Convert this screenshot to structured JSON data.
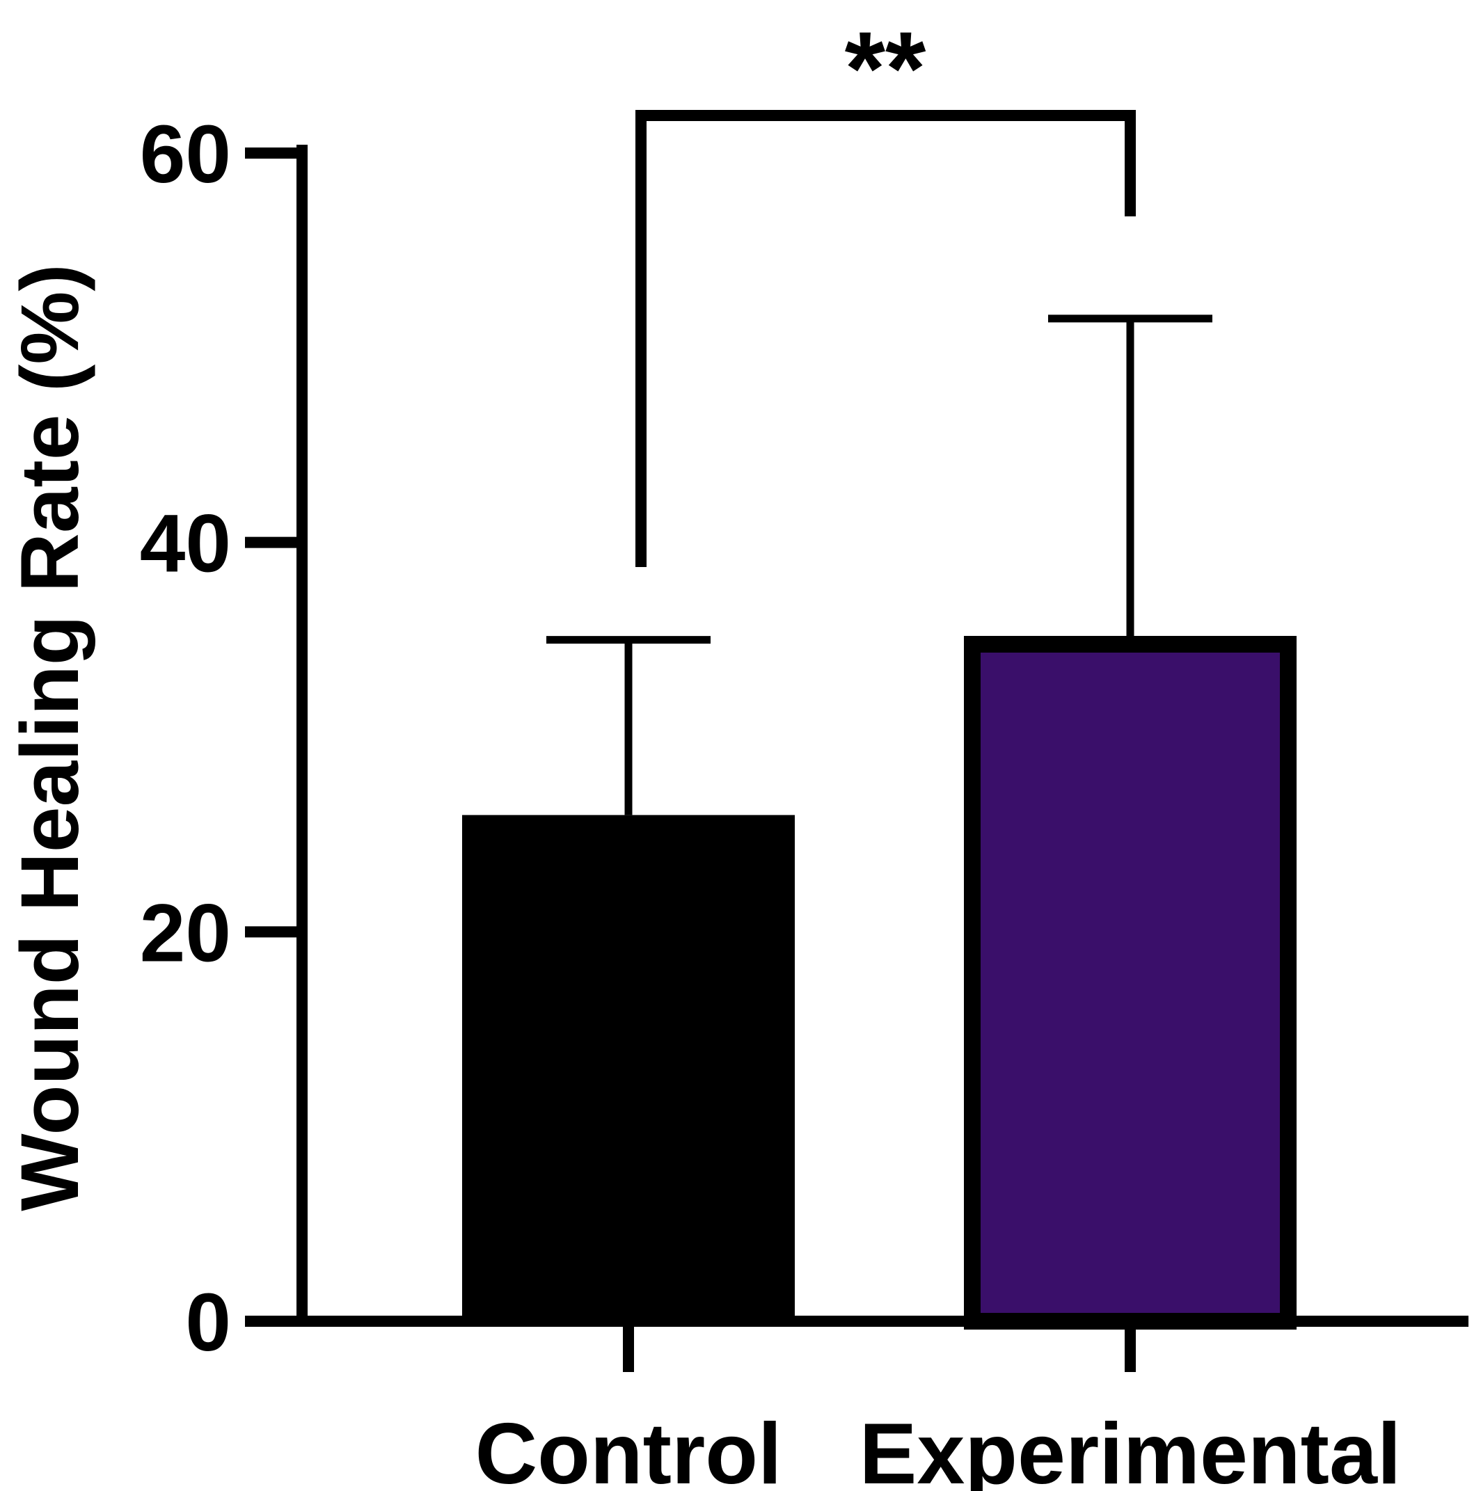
{
  "chart_data": {
    "type": "bar",
    "title": "",
    "xlabel": "",
    "ylabel": "Wound Healing Rate (%)",
    "ylim": [
      0,
      60
    ],
    "yticks": [
      "0",
      "20",
      "40",
      "60"
    ],
    "ytick_values": [
      0,
      20,
      40,
      60
    ],
    "categories": [
      "Control",
      "Experimental"
    ],
    "values": [
      26,
      35.2
    ],
    "errors": [
      9,
      16.3
    ],
    "bar_fill_colors": [
      "#000000",
      "#3a0f6a"
    ],
    "bar_edge_color": "#000000",
    "significance": {
      "label": "**",
      "between": [
        "Control",
        "Experimental"
      ]
    },
    "grid": false,
    "legend": "none"
  }
}
